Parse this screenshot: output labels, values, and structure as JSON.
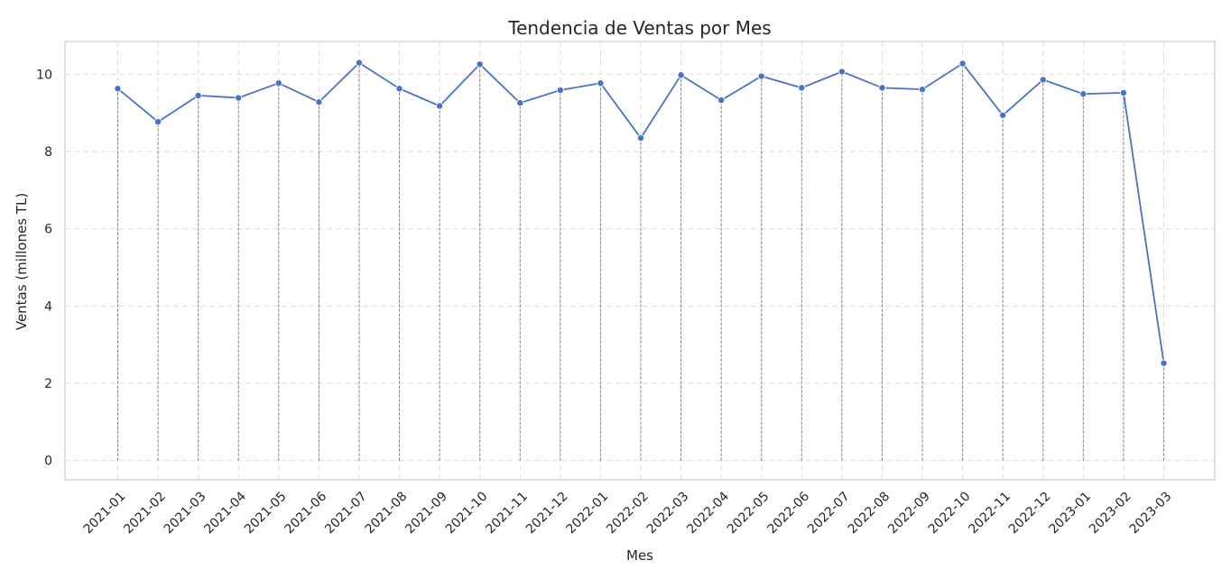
{
  "chart_data": {
    "type": "line",
    "title": "Tendencia de Ventas por Mes",
    "xlabel": "Mes",
    "ylabel": "Ventas (millones TL)",
    "ylim": [
      -0.5,
      10.85
    ],
    "yticks": [
      0,
      2,
      4,
      6,
      8,
      10
    ],
    "grid": true,
    "legend": "none",
    "categories": [
      "2021-01",
      "2021-02",
      "2021-03",
      "2021-04",
      "2021-05",
      "2021-06",
      "2021-07",
      "2021-08",
      "2021-09",
      "2021-10",
      "2021-11",
      "2021-12",
      "2022-01",
      "2022-02",
      "2022-03",
      "2022-04",
      "2022-05",
      "2022-06",
      "2022-07",
      "2022-08",
      "2022-09",
      "2022-10",
      "2022-11",
      "2022-12",
      "2023-01",
      "2023-02",
      "2023-03"
    ],
    "series": [
      {
        "values": [
          9.63,
          8.77,
          9.45,
          9.39,
          9.77,
          9.28,
          10.3,
          9.63,
          9.18,
          10.26,
          9.26,
          9.59,
          9.77,
          8.35,
          9.98,
          9.33,
          9.95,
          9.65,
          10.07,
          9.65,
          9.61,
          10.28,
          8.94,
          9.86,
          9.49,
          9.52,
          2.52
        ],
        "color": "#4c72c4"
      }
    ],
    "colors": {
      "line": "#4c72c4",
      "stem": "#808080",
      "grid": "#dedede",
      "frame": "#cccccc"
    }
  }
}
